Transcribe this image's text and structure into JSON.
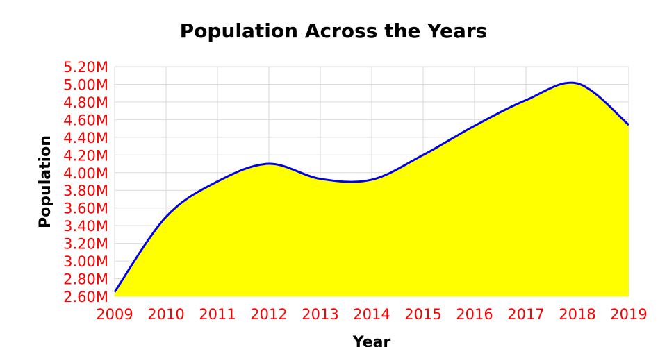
{
  "chart_data": {
    "type": "area",
    "title": "Population Across the Years",
    "xlabel": "Year",
    "ylabel": "Population",
    "x": [
      2009,
      2010,
      2011,
      2012,
      2013,
      2014,
      2015,
      2016,
      2017,
      2018,
      2019
    ],
    "series": [
      {
        "values": [
          2650000,
          3500000,
          3900000,
          4100000,
          3930000,
          3920000,
          4200000,
          4530000,
          4820000,
          5010000,
          4540000
        ]
      }
    ],
    "xlim": [
      2009,
      2019
    ],
    "ylim": [
      2600000,
      5200000
    ],
    "y_ticks": [
      2600000,
      2800000,
      3000000,
      3200000,
      3400000,
      3600000,
      3800000,
      4000000,
      4200000,
      4400000,
      4600000,
      4800000,
      5000000,
      5200000
    ],
    "y_tick_labels": [
      "2.60M",
      "2.80M",
      "3.00M",
      "3.20M",
      "3.40M",
      "3.60M",
      "3.80M",
      "4.00M",
      "4.20M",
      "4.40M",
      "4.60M",
      "4.80M",
      "5.00M",
      "5.20M"
    ],
    "x_tick_labels": [
      "2009",
      "2010",
      "2011",
      "2012",
      "2013",
      "2014",
      "2015",
      "2016",
      "2017",
      "2018",
      "2019"
    ],
    "grid": true,
    "colors": {
      "fill": "#ffff00",
      "line": "#0000ee",
      "tick_labels": "#ff0000",
      "grid": "#d9d9d9"
    }
  }
}
